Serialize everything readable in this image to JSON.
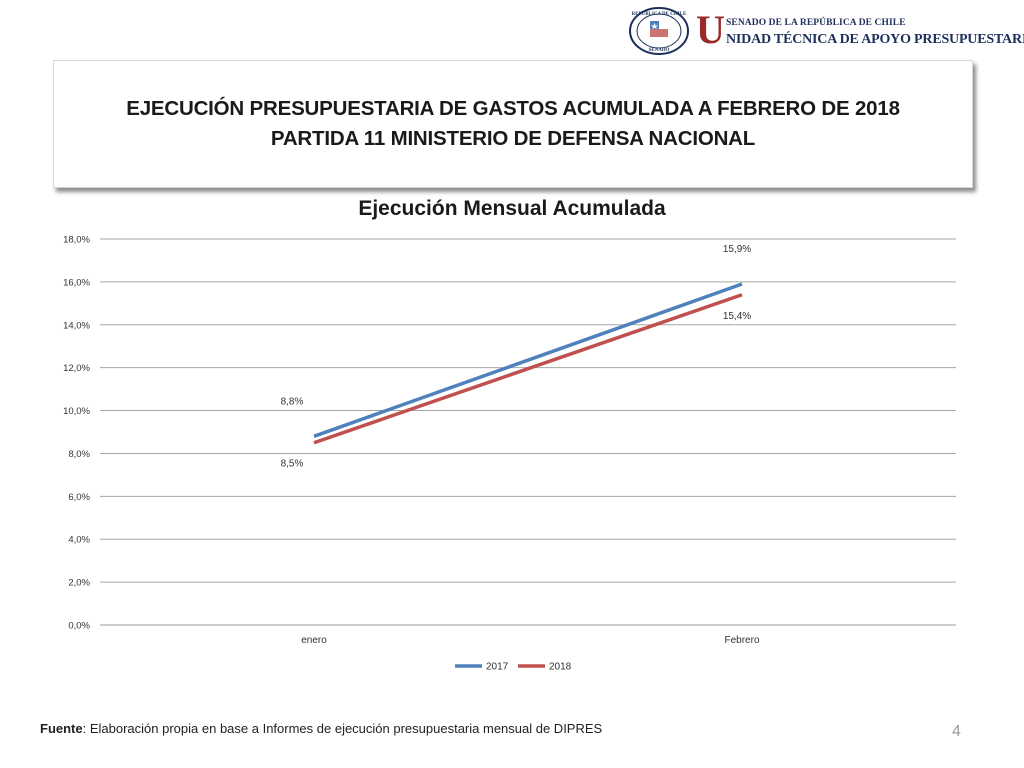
{
  "header": {
    "seal_text": "REPÚBLICA DE CHILE",
    "seal_subtext": "SENADO",
    "brand_letter": "U",
    "brand_top": "SENADO DE LA REPÚBLICA DE CHILE",
    "brand_bottom": "NIDAD TÉCNICA DE APOYO PRESUPUESTARIO"
  },
  "title": {
    "line1": "EJECUCIÓN PRESUPUESTARIA DE GASTOS ACUMULADA A FEBRERO DE 2018",
    "line2": "PARTIDA 11 MINISTERIO DE DEFENSA NACIONAL"
  },
  "chart_data": {
    "type": "line",
    "title": "Ejecución Mensual Acumulada",
    "categories": [
      "enero",
      "Febrero"
    ],
    "series": [
      {
        "name": "2017",
        "values": [
          8.8,
          15.9
        ],
        "labels": [
          "8,8%",
          "15,9%"
        ],
        "color": "#4f81bd"
      },
      {
        "name": "2018",
        "values": [
          8.5,
          15.4
        ],
        "labels": [
          "8,5%",
          "15,4%"
        ],
        "color": "#c0504d"
      }
    ],
    "ylim": [
      0,
      18
    ],
    "yticks": [
      {
        "value": 0,
        "label": "0,0%"
      },
      {
        "value": 2,
        "label": "2,0%"
      },
      {
        "value": 4,
        "label": "4,0%"
      },
      {
        "value": 6,
        "label": "6,0%"
      },
      {
        "value": 8,
        "label": "8,0%"
      },
      {
        "value": 10,
        "label": "10,0%"
      },
      {
        "value": 12,
        "label": "12,0%"
      },
      {
        "value": 14,
        "label": "14,0%"
      },
      {
        "value": 16,
        "label": "16,0%"
      },
      {
        "value": 18,
        "label": "18,0%"
      }
    ],
    "grid": true,
    "legend": "bottom"
  },
  "footer": {
    "source_label": "Fuente",
    "source_text": ": Elaboración propia en base  a Informes de ejecución presupuestaria mensual de DIPRES",
    "page_number": "4"
  }
}
